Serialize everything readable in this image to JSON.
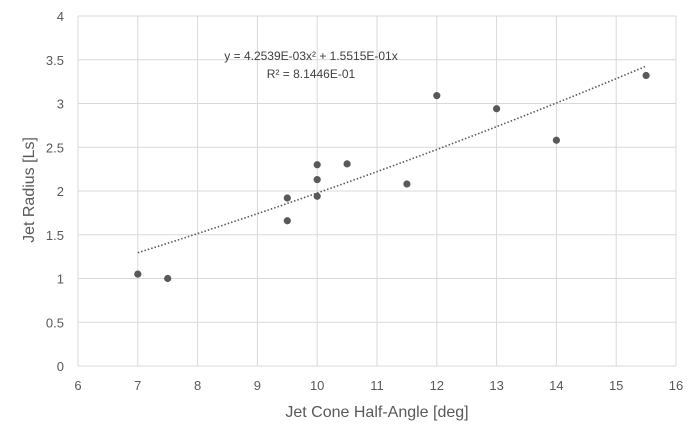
{
  "chart_data": {
    "type": "scatter",
    "xlabel": "Jet Cone Half-Angle [deg]",
    "ylabel": "Jet Radius [Ls]",
    "xlim": [
      6,
      16
    ],
    "ylim": [
      0,
      4
    ],
    "x_ticks": [
      "6",
      "7",
      "8",
      "9",
      "10",
      "11",
      "12",
      "13",
      "14",
      "15",
      "16"
    ],
    "y_ticks": [
      "0",
      "0.5",
      "1",
      "1.5",
      "2",
      "2.5",
      "3",
      "3.5",
      "4"
    ],
    "x_tick_values": [
      6,
      7,
      8,
      9,
      10,
      11,
      12,
      13,
      14,
      15,
      16
    ],
    "y_tick_values": [
      0,
      0.5,
      1,
      1.5,
      2,
      2.5,
      3,
      3.5,
      4
    ],
    "grid": "vertical and horizontal",
    "legend": "none",
    "points": [
      {
        "x": 7.0,
        "y": 1.05
      },
      {
        "x": 7.5,
        "y": 1.0
      },
      {
        "x": 9.5,
        "y": 1.92
      },
      {
        "x": 9.5,
        "y": 1.66
      },
      {
        "x": 10.0,
        "y": 2.3
      },
      {
        "x": 10.0,
        "y": 2.13
      },
      {
        "x": 10.0,
        "y": 1.94
      },
      {
        "x": 10.5,
        "y": 2.31
      },
      {
        "x": 11.5,
        "y": 2.08
      },
      {
        "x": 12.0,
        "y": 3.09
      },
      {
        "x": 13.0,
        "y": 2.94
      },
      {
        "x": 14.0,
        "y": 2.58
      },
      {
        "x": 15.5,
        "y": 3.32
      }
    ],
    "trendline": {
      "type": "polynomial",
      "a2": 0.0042539,
      "a1": 0.15515,
      "x_range": [
        7.0,
        15.5
      ],
      "equation": "y = 4.2539E-03x² + 1.5515E-01x",
      "r_squared": "R² = 8.1446E-01"
    },
    "colors": {
      "marker": "#595959",
      "trendline": "#595959",
      "grid": "#d9d9d9",
      "tick_text": "#595959"
    }
  }
}
